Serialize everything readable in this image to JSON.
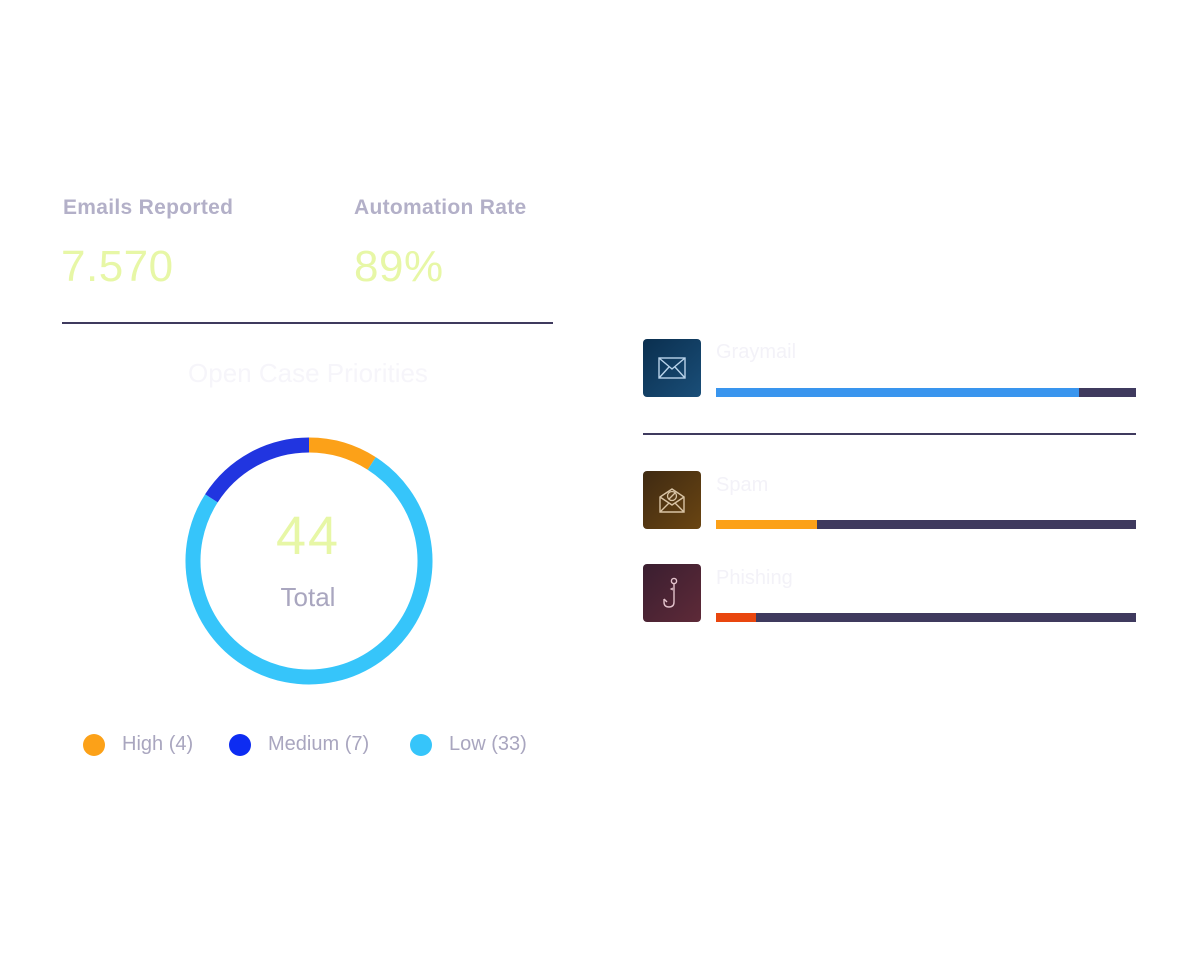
{
  "stats": {
    "emails_reported": {
      "label": "Emails Reported",
      "value": "7.570"
    },
    "automation_rate": {
      "label": "Automation Rate",
      "value": "89%"
    }
  },
  "priorities": {
    "title": "Open Case Priorities",
    "total_value": "44",
    "total_label": "Total",
    "items": [
      {
        "label": "High (4)",
        "count": 4,
        "color": "#fca118"
      },
      {
        "label": "Medium (7)",
        "count": 7,
        "color": "#2135e0"
      },
      {
        "label": "Low (33)",
        "count": 33,
        "color": "#36c5fa"
      }
    ],
    "legend_colors": {
      "high": "#fca118",
      "medium": "#0d2cf2",
      "low": "#36c5fa"
    }
  },
  "categories": [
    {
      "name": "Graymail",
      "icon": "envelope-icon",
      "fill_fraction": 0.865,
      "bar_color": "#3995ee",
      "icon_bg": [
        "#0a2f4f",
        "#1a4e78"
      ]
    },
    {
      "name": "Spam",
      "icon": "spam-envelope-icon",
      "fill_fraction": 0.24,
      "bar_color": "#fca118",
      "icon_bg": [
        "#3f2a12",
        "#6a4512"
      ]
    },
    {
      "name": "Phishing",
      "icon": "fishhook-icon",
      "fill_fraction": 0.095,
      "bar_color": "#e9460e",
      "icon_bg": [
        "#3a1e30",
        "#5e2a38"
      ]
    }
  ],
  "colors": {
    "track": "#3f3a5e",
    "divider": "#3f3a5e",
    "value_text": "#e7f7a6",
    "label_text": "#b3b0c8"
  }
}
